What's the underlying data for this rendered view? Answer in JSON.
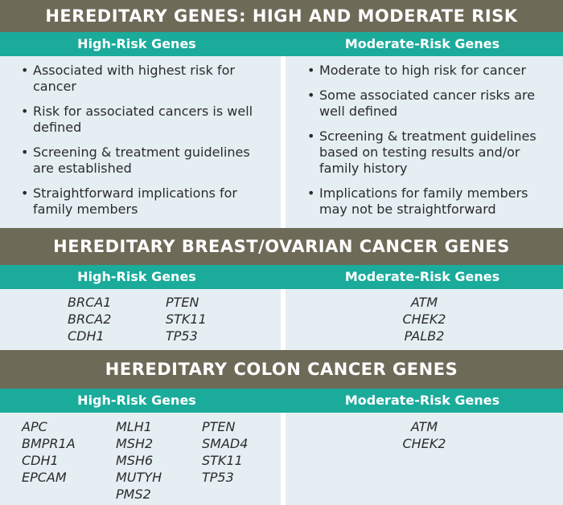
{
  "section1": {
    "title": "HEREDITARY GENES: HIGH AND MODERATE RISK",
    "high_header": "High-Risk Genes",
    "moderate_header": "Moderate-Risk Genes",
    "high_bullets": [
      "Associated with highest risk for cancer",
      "Risk for associated cancers is well defined",
      "Screening & treatment guidelines are established",
      "Straightforward implications for family members"
    ],
    "moderate_bullets": [
      "Moderate to high risk for cancer",
      "Some associated cancer risks are well defined",
      "Screening & treatment guidelines based on testing results and/or family history",
      "Implications for family members may not be straightforward"
    ]
  },
  "section2": {
    "title": "HEREDITARY BREAST/OVARIAN CANCER GENES",
    "high_header": "High-Risk Genes",
    "moderate_header": "Moderate-Risk Genes",
    "high_col1": [
      "BRCA1",
      "BRCA2",
      "CDH1"
    ],
    "high_col2": [
      "PTEN",
      "STK11",
      "TP53"
    ],
    "moderate": [
      "ATM",
      "CHEK2",
      "PALB2"
    ]
  },
  "section3": {
    "title": "HEREDITARY COLON CANCER GENES",
    "high_header": "High-Risk Genes",
    "moderate_header": "Moderate-Risk Genes",
    "high_col1": [
      "APC",
      "BMPR1A",
      "CDH1",
      "EPCAM"
    ],
    "high_col2": [
      "MLH1",
      "MSH2",
      "MSH6",
      "MUTYH",
      "PMS2"
    ],
    "high_col3": [
      "PTEN",
      "SMAD4",
      "STK11",
      "TP53"
    ],
    "moderate": [
      "ATM",
      "CHEK2"
    ]
  },
  "colors": {
    "band": "#6e6a58",
    "teal": "#1aab9b",
    "panel": "#e5eef3"
  }
}
